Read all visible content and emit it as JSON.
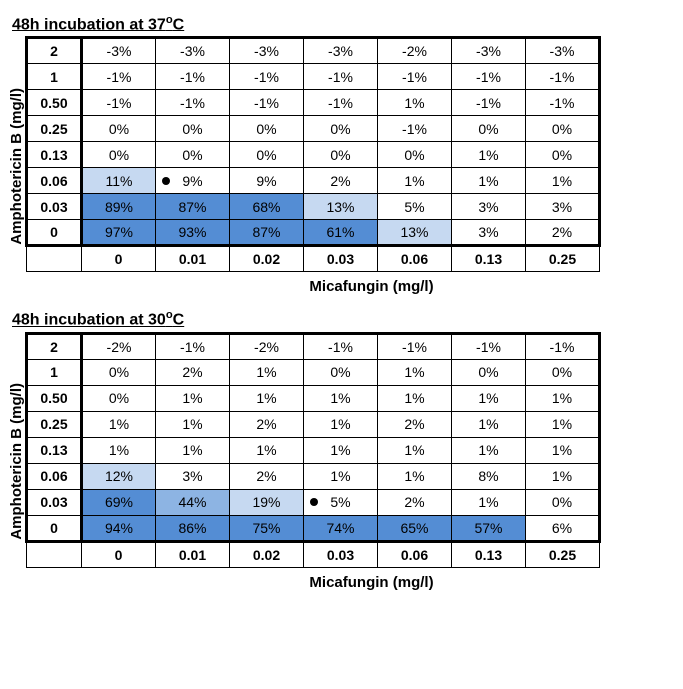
{
  "colors": {
    "none": "#ffffff",
    "light": "#c6d9f1",
    "mid": "#8db4e3",
    "dark": "#548dd4"
  },
  "panels": [
    {
      "title_prefix": "48h incubation at 37",
      "title_suffix": "C",
      "y_label": "Amphotericin B (mg/l)",
      "x_label": "Micafungin (mg/l)",
      "row_labels": [
        "2",
        "1",
        "0.50",
        "0.25",
        "0.13",
        "0.06",
        "0.03",
        "0"
      ],
      "col_labels": [
        "0",
        "0.01",
        "0.02",
        "0.03",
        "0.06",
        "0.13",
        "0.25"
      ],
      "rows": [
        [
          {
            "v": "-3%",
            "s": "none"
          },
          {
            "v": "-3%",
            "s": "none"
          },
          {
            "v": "-3%",
            "s": "none"
          },
          {
            "v": "-3%",
            "s": "none"
          },
          {
            "v": "-2%",
            "s": "none"
          },
          {
            "v": "-3%",
            "s": "none"
          },
          {
            "v": "-3%",
            "s": "none"
          }
        ],
        [
          {
            "v": "-1%",
            "s": "none"
          },
          {
            "v": "-1%",
            "s": "none"
          },
          {
            "v": "-1%",
            "s": "none"
          },
          {
            "v": "-1%",
            "s": "none"
          },
          {
            "v": "-1%",
            "s": "none"
          },
          {
            "v": "-1%",
            "s": "none"
          },
          {
            "v": "-1%",
            "s": "none"
          }
        ],
        [
          {
            "v": "-1%",
            "s": "none"
          },
          {
            "v": "-1%",
            "s": "none"
          },
          {
            "v": "-1%",
            "s": "none"
          },
          {
            "v": "-1%",
            "s": "none"
          },
          {
            "v": "1%",
            "s": "none"
          },
          {
            "v": "-1%",
            "s": "none"
          },
          {
            "v": "-1%",
            "s": "none"
          }
        ],
        [
          {
            "v": "0%",
            "s": "none"
          },
          {
            "v": "0%",
            "s": "none"
          },
          {
            "v": "0%",
            "s": "none"
          },
          {
            "v": "0%",
            "s": "none"
          },
          {
            "v": "-1%",
            "s": "none"
          },
          {
            "v": "0%",
            "s": "none"
          },
          {
            "v": "0%",
            "s": "none"
          }
        ],
        [
          {
            "v": "0%",
            "s": "none"
          },
          {
            "v": "0%",
            "s": "none"
          },
          {
            "v": "0%",
            "s": "none"
          },
          {
            "v": "0%",
            "s": "none"
          },
          {
            "v": "0%",
            "s": "none"
          },
          {
            "v": "1%",
            "s": "none"
          },
          {
            "v": "0%",
            "s": "none"
          }
        ],
        [
          {
            "v": "11%",
            "s": "light"
          },
          {
            "v": "9%",
            "s": "none",
            "dot": true
          },
          {
            "v": "9%",
            "s": "none"
          },
          {
            "v": "2%",
            "s": "none"
          },
          {
            "v": "1%",
            "s": "none"
          },
          {
            "v": "1%",
            "s": "none"
          },
          {
            "v": "1%",
            "s": "none"
          }
        ],
        [
          {
            "v": "89%",
            "s": "dark"
          },
          {
            "v": "87%",
            "s": "dark"
          },
          {
            "v": "68%",
            "s": "dark"
          },
          {
            "v": "13%",
            "s": "light"
          },
          {
            "v": "5%",
            "s": "none"
          },
          {
            "v": "3%",
            "s": "none"
          },
          {
            "v": "3%",
            "s": "none"
          }
        ],
        [
          {
            "v": "97%",
            "s": "dark"
          },
          {
            "v": "93%",
            "s": "dark"
          },
          {
            "v": "87%",
            "s": "dark"
          },
          {
            "v": "61%",
            "s": "dark"
          },
          {
            "v": "13%",
            "s": "light"
          },
          {
            "v": "3%",
            "s": "none"
          },
          {
            "v": "2%",
            "s": "none"
          }
        ]
      ]
    },
    {
      "title_prefix": "48h incubation at 30",
      "title_suffix": "C",
      "y_label": "Amphotericin B (mg/l)",
      "x_label": "Micafungin (mg/l)",
      "row_labels": [
        "2",
        "1",
        "0.50",
        "0.25",
        "0.13",
        "0.06",
        "0.03",
        "0"
      ],
      "col_labels": [
        "0",
        "0.01",
        "0.02",
        "0.03",
        "0.06",
        "0.13",
        "0.25"
      ],
      "rows": [
        [
          {
            "v": "-2%",
            "s": "none"
          },
          {
            "v": "-1%",
            "s": "none"
          },
          {
            "v": "-2%",
            "s": "none"
          },
          {
            "v": "-1%",
            "s": "none"
          },
          {
            "v": "-1%",
            "s": "none"
          },
          {
            "v": "-1%",
            "s": "none"
          },
          {
            "v": "-1%",
            "s": "none"
          }
        ],
        [
          {
            "v": "0%",
            "s": "none"
          },
          {
            "v": "2%",
            "s": "none"
          },
          {
            "v": "1%",
            "s": "none"
          },
          {
            "v": "0%",
            "s": "none"
          },
          {
            "v": "1%",
            "s": "none"
          },
          {
            "v": "0%",
            "s": "none"
          },
          {
            "v": "0%",
            "s": "none"
          }
        ],
        [
          {
            "v": "0%",
            "s": "none"
          },
          {
            "v": "1%",
            "s": "none"
          },
          {
            "v": "1%",
            "s": "none"
          },
          {
            "v": "1%",
            "s": "none"
          },
          {
            "v": "1%",
            "s": "none"
          },
          {
            "v": "1%",
            "s": "none"
          },
          {
            "v": "1%",
            "s": "none"
          }
        ],
        [
          {
            "v": "1%",
            "s": "none"
          },
          {
            "v": "1%",
            "s": "none"
          },
          {
            "v": "2%",
            "s": "none"
          },
          {
            "v": "1%",
            "s": "none"
          },
          {
            "v": "2%",
            "s": "none"
          },
          {
            "v": "1%",
            "s": "none"
          },
          {
            "v": "1%",
            "s": "none"
          }
        ],
        [
          {
            "v": "1%",
            "s": "none"
          },
          {
            "v": "1%",
            "s": "none"
          },
          {
            "v": "1%",
            "s": "none"
          },
          {
            "v": "1%",
            "s": "none"
          },
          {
            "v": "1%",
            "s": "none"
          },
          {
            "v": "1%",
            "s": "none"
          },
          {
            "v": "1%",
            "s": "none"
          }
        ],
        [
          {
            "v": "12%",
            "s": "light"
          },
          {
            "v": "3%",
            "s": "none"
          },
          {
            "v": "2%",
            "s": "none"
          },
          {
            "v": "1%",
            "s": "none"
          },
          {
            "v": "1%",
            "s": "none"
          },
          {
            "v": "8%",
            "s": "none"
          },
          {
            "v": "1%",
            "s": "none"
          }
        ],
        [
          {
            "v": "69%",
            "s": "dark"
          },
          {
            "v": "44%",
            "s": "mid"
          },
          {
            "v": "19%",
            "s": "light"
          },
          {
            "v": "5%",
            "s": "none",
            "dot": true
          },
          {
            "v": "2%",
            "s": "none"
          },
          {
            "v": "1%",
            "s": "none"
          },
          {
            "v": "0%",
            "s": "none"
          }
        ],
        [
          {
            "v": "94%",
            "s": "dark"
          },
          {
            "v": "86%",
            "s": "dark"
          },
          {
            "v": "75%",
            "s": "dark"
          },
          {
            "v": "74%",
            "s": "dark"
          },
          {
            "v": "65%",
            "s": "dark"
          },
          {
            "v": "57%",
            "s": "dark"
          },
          {
            "v": "6%",
            "s": "none"
          }
        ]
      ]
    }
  ]
}
